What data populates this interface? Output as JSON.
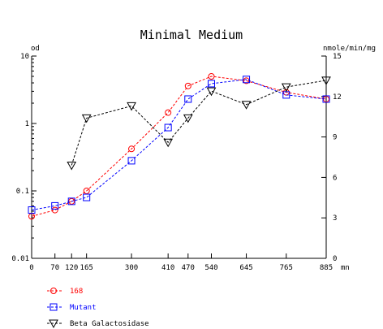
{
  "chart_data": {
    "type": "line",
    "title": "Minimal Medium",
    "left_axis": {
      "label": "od",
      "scale": "log",
      "range": [
        0.01,
        10
      ],
      "ticks": [
        {
          "value": 0.01,
          "label": "0.01"
        },
        {
          "value": 0.1,
          "label": "0.1"
        },
        {
          "value": 1,
          "label": "1"
        },
        {
          "value": 10,
          "label": "10"
        }
      ]
    },
    "right_axis": {
      "label": "nmole/min/mg",
      "scale": "linear",
      "range": [
        0,
        15
      ],
      "ticks": [
        {
          "value": 0,
          "label": "0"
        },
        {
          "value": 3,
          "label": "3"
        },
        {
          "value": 6,
          "label": "6"
        },
        {
          "value": 9,
          "label": "9"
        },
        {
          "value": 12,
          "label": "12"
        },
        {
          "value": 15,
          "label": "15"
        }
      ]
    },
    "x_axis": {
      "unit_label": "mn",
      "range": [
        0,
        885
      ],
      "ticks": [
        {
          "value": 0,
          "label": "0"
        },
        {
          "value": 70,
          "label": "70"
        },
        {
          "value": 120,
          "label": "120"
        },
        {
          "value": 165,
          "label": "165"
        },
        {
          "value": 300,
          "label": "300"
        },
        {
          "value": 410,
          "label": "410"
        },
        {
          "value": 470,
          "label": "470"
        },
        {
          "value": 540,
          "label": "540"
        },
        {
          "value": 645,
          "label": "645"
        },
        {
          "value": 765,
          "label": "765"
        },
        {
          "value": 885,
          "label": "885"
        }
      ]
    },
    "series": [
      {
        "name": "168",
        "axis": "left",
        "marker": "circle",
        "color": "#ff0000",
        "points": [
          [
            0,
            0.042
          ],
          [
            70,
            0.052
          ],
          [
            120,
            0.07
          ],
          [
            165,
            0.1
          ],
          [
            300,
            0.42
          ],
          [
            410,
            1.45
          ],
          [
            470,
            3.6
          ],
          [
            540,
            5.0
          ],
          [
            645,
            4.3
          ],
          [
            765,
            2.9
          ],
          [
            885,
            2.3
          ]
        ]
      },
      {
        "name": "Mutant",
        "axis": "left",
        "marker": "square",
        "color": "#0000ff",
        "points": [
          [
            0,
            0.052
          ],
          [
            70,
            0.06
          ],
          [
            120,
            0.07
          ],
          [
            165,
            0.08
          ],
          [
            300,
            0.28
          ],
          [
            410,
            0.87
          ],
          [
            470,
            2.3
          ],
          [
            540,
            3.9
          ],
          [
            645,
            4.5
          ],
          [
            765,
            2.65
          ],
          [
            885,
            2.3
          ]
        ]
      },
      {
        "name": "Beta Galactosidase",
        "axis": "right",
        "marker": "triangle-down",
        "color": "#000000",
        "points": [
          [
            120,
            6.9
          ],
          [
            165,
            10.4
          ],
          [
            300,
            11.3
          ],
          [
            410,
            8.6
          ],
          [
            470,
            10.4
          ],
          [
            540,
            12.4
          ],
          [
            645,
            11.4
          ],
          [
            765,
            12.7
          ],
          [
            885,
            13.2
          ]
        ]
      }
    ]
  }
}
